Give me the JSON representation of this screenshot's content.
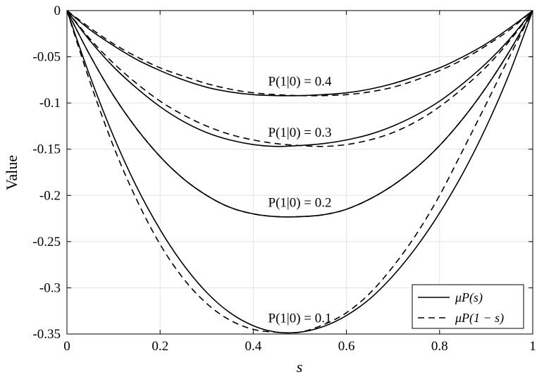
{
  "chart_data": {
    "type": "line",
    "title": "",
    "xlabel": "s",
    "ylabel": "Value",
    "xlim": [
      0,
      1
    ],
    "ylim": [
      -0.35,
      0
    ],
    "grid": true,
    "legend_position": "bottom-right",
    "x_ticks": [
      "0",
      "0.2",
      "0.4",
      "0.6",
      "0.8",
      "1"
    ],
    "y_ticks": [
      "0",
      "-0.05",
      "-0.1",
      "-0.15",
      "-0.2",
      "-0.25",
      "-0.3",
      "-0.35"
    ],
    "x": [
      0,
      0.05,
      0.1,
      0.15,
      0.2,
      0.25,
      0.3,
      0.35,
      0.4,
      0.45,
      0.5,
      0.55,
      0.6,
      0.65,
      0.7,
      0.75,
      0.8,
      0.85,
      0.9,
      0.95,
      1
    ],
    "groups": [
      {
        "annotation": "P(1|0) = 0.4",
        "solid": [
          0,
          -0.021,
          -0.038,
          -0.053,
          -0.065,
          -0.075,
          -0.083,
          -0.088,
          -0.091,
          -0.092,
          -0.092,
          -0.091,
          -0.089,
          -0.085,
          -0.079,
          -0.071,
          -0.062,
          -0.05,
          -0.036,
          -0.019,
          0
        ],
        "dashed": [
          0,
          -0.019,
          -0.036,
          -0.05,
          -0.062,
          -0.071,
          -0.079,
          -0.085,
          -0.089,
          -0.091,
          -0.092,
          -0.092,
          -0.091,
          -0.088,
          -0.083,
          -0.075,
          -0.065,
          -0.053,
          -0.038,
          -0.021,
          0
        ]
      },
      {
        "annotation": "P(1|0) = 0.3",
        "solid": [
          0,
          -0.033,
          -0.061,
          -0.084,
          -0.104,
          -0.12,
          -0.132,
          -0.14,
          -0.145,
          -0.147,
          -0.146,
          -0.144,
          -0.14,
          -0.134,
          -0.125,
          -0.113,
          -0.098,
          -0.079,
          -0.057,
          -0.031,
          0
        ],
        "dashed": [
          0,
          -0.031,
          -0.057,
          -0.079,
          -0.098,
          -0.113,
          -0.125,
          -0.134,
          -0.14,
          -0.144,
          -0.146,
          -0.147,
          -0.145,
          -0.14,
          -0.132,
          -0.12,
          -0.104,
          -0.084,
          -0.061,
          -0.033,
          0
        ]
      },
      {
        "annotation": "P(1|0) = 0.2",
        "solid": [
          0,
          -0.049,
          -0.092,
          -0.128,
          -0.158,
          -0.182,
          -0.2,
          -0.213,
          -0.22,
          -0.223,
          -0.223,
          -0.221,
          -0.215,
          -0.204,
          -0.189,
          -0.17,
          -0.146,
          -0.117,
          -0.083,
          -0.044,
          0
        ],
        "dashed": [
          0,
          -0.049,
          -0.092,
          -0.128,
          -0.158,
          -0.182,
          -0.2,
          -0.213,
          -0.22,
          -0.223,
          -0.223,
          -0.221,
          -0.215,
          -0.204,
          -0.189,
          -0.17,
          -0.146,
          -0.117,
          -0.083,
          -0.044,
          0
        ]
      },
      {
        "annotation": "P(1|0) = 0.1",
        "solid": [
          0,
          -0.072,
          -0.136,
          -0.191,
          -0.237,
          -0.275,
          -0.305,
          -0.327,
          -0.341,
          -0.348,
          -0.348,
          -0.342,
          -0.33,
          -0.312,
          -0.287,
          -0.256,
          -0.219,
          -0.176,
          -0.126,
          -0.068,
          0
        ],
        "dashed": [
          0,
          -0.078,
          -0.147,
          -0.205,
          -0.253,
          -0.29,
          -0.317,
          -0.335,
          -0.345,
          -0.348,
          -0.348,
          -0.34,
          -0.327,
          -0.306,
          -0.277,
          -0.242,
          -0.2,
          -0.151,
          -0.101,
          -0.05,
          0
        ]
      }
    ],
    "legend": [
      {
        "style": "solid",
        "label": "μP(s)"
      },
      {
        "style": "dashed",
        "label": "μP(1 − s)"
      }
    ]
  }
}
